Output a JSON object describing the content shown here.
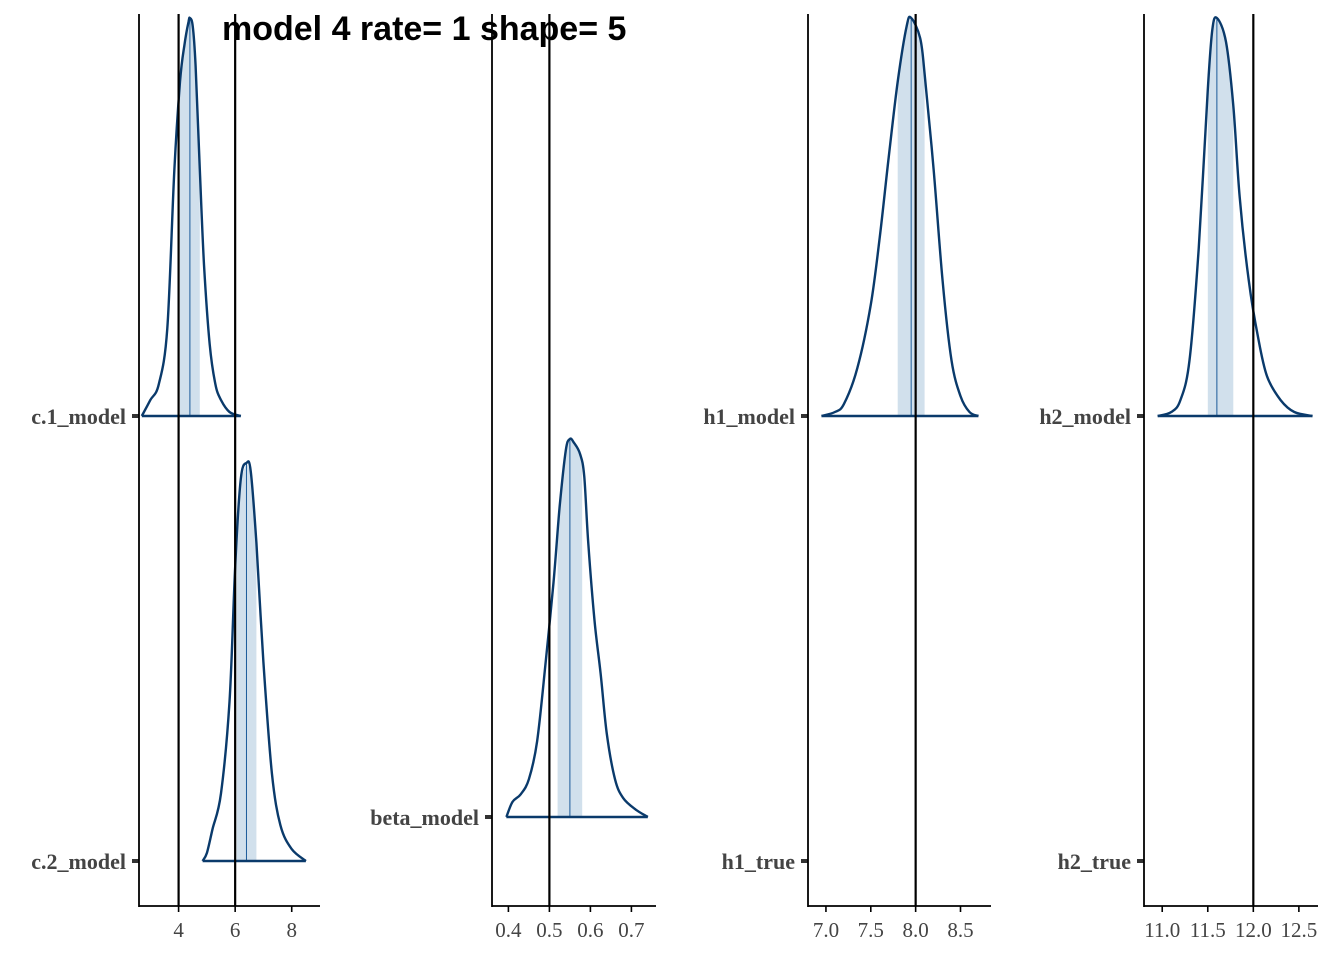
{
  "title": "model 4 rate= 1 shape= 5",
  "colors": {
    "density_line": "#0a3a6b",
    "interval_fill": "#d1e0ec",
    "median_line": "#1a5a9a",
    "vline": "#000000",
    "axis": "#000000"
  },
  "chart_data": [
    {
      "type": "area",
      "chart": "posterior-density-ridges",
      "xlim": [
        2.6,
        9.0
      ],
      "xticks": [
        4,
        6,
        8
      ],
      "tick_labels": [
        "4",
        "6",
        "8"
      ],
      "vlines": [
        4,
        6
      ],
      "params": [
        {
          "label": "c.1_model",
          "median": 4.4,
          "interval": [
            4.05,
            4.75
          ],
          "support": [
            2.7,
            6.2
          ],
          "density": [
            [
              2.7,
              0.0
            ],
            [
              3.0,
              0.04
            ],
            [
              3.3,
              0.08
            ],
            [
              3.6,
              0.22
            ],
            [
              3.85,
              0.62
            ],
            [
              4.05,
              0.84
            ],
            [
              4.2,
              0.93
            ],
            [
              4.35,
              0.99
            ],
            [
              4.4,
              1.0
            ],
            [
              4.5,
              0.98
            ],
            [
              4.6,
              0.88
            ],
            [
              4.75,
              0.62
            ],
            [
              4.9,
              0.38
            ],
            [
              5.1,
              0.18
            ],
            [
              5.3,
              0.08
            ],
            [
              5.5,
              0.04
            ],
            [
              5.8,
              0.01
            ],
            [
              6.2,
              0.0
            ]
          ]
        },
        {
          "label": "c.2_model",
          "median": 6.4,
          "interval": [
            6.05,
            6.75
          ],
          "support": [
            4.85,
            8.5
          ],
          "density": [
            [
              4.85,
              0.0
            ],
            [
              5.0,
              0.02
            ],
            [
              5.2,
              0.08
            ],
            [
              5.5,
              0.17
            ],
            [
              5.8,
              0.4
            ],
            [
              6.0,
              0.74
            ],
            [
              6.2,
              0.96
            ],
            [
              6.4,
              1.0
            ],
            [
              6.55,
              0.98
            ],
            [
              6.75,
              0.8
            ],
            [
              7.0,
              0.5
            ],
            [
              7.3,
              0.22
            ],
            [
              7.6,
              0.09
            ],
            [
              8.0,
              0.03
            ],
            [
              8.5,
              0.0
            ]
          ]
        }
      ]
    },
    {
      "type": "area",
      "chart": "posterior-density-ridges",
      "xlim": [
        0.36,
        0.76
      ],
      "xticks": [
        0.4,
        0.5,
        0.6,
        0.7
      ],
      "tick_labels": [
        "0.4",
        "0.5",
        "0.6",
        "0.7"
      ],
      "vlines": [
        0.5
      ],
      "params": [
        {
          "label": "beta_model",
          "median": 0.55,
          "interval": [
            0.52,
            0.58
          ],
          "support": [
            0.395,
            0.74
          ],
          "density": [
            [
              0.395,
              0.0
            ],
            [
              0.41,
              0.04
            ],
            [
              0.43,
              0.06
            ],
            [
              0.45,
              0.1
            ],
            [
              0.47,
              0.2
            ],
            [
              0.49,
              0.4
            ],
            [
              0.51,
              0.62
            ],
            [
              0.525,
              0.82
            ],
            [
              0.54,
              0.97
            ],
            [
              0.55,
              1.0
            ],
            [
              0.56,
              0.99
            ],
            [
              0.575,
              0.96
            ],
            [
              0.585,
              0.9
            ],
            [
              0.595,
              0.72
            ],
            [
              0.61,
              0.52
            ],
            [
              0.625,
              0.38
            ],
            [
              0.64,
              0.22
            ],
            [
              0.66,
              0.1
            ],
            [
              0.68,
              0.05
            ],
            [
              0.71,
              0.02
            ],
            [
              0.74,
              0.0
            ]
          ]
        }
      ]
    },
    {
      "type": "area",
      "chart": "posterior-density-ridges",
      "xlim": [
        6.8,
        8.84
      ],
      "xticks": [
        7.0,
        7.5,
        8.0,
        8.5
      ],
      "tick_labels": [
        "7.0",
        "7.5",
        "8.0",
        "8.5"
      ],
      "vlines": [
        8.0
      ],
      "params": [
        {
          "label": "h1_model",
          "median": 7.95,
          "interval": [
            7.8,
            8.1
          ],
          "support": [
            6.95,
            8.7
          ],
          "density": [
            [
              6.95,
              0.0
            ],
            [
              7.1,
              0.01
            ],
            [
              7.2,
              0.03
            ],
            [
              7.35,
              0.12
            ],
            [
              7.5,
              0.28
            ],
            [
              7.6,
              0.45
            ],
            [
              7.7,
              0.65
            ],
            [
              7.8,
              0.84
            ],
            [
              7.9,
              0.98
            ],
            [
              7.95,
              1.0
            ],
            [
              8.05,
              0.95
            ],
            [
              8.1,
              0.86
            ],
            [
              8.2,
              0.62
            ],
            [
              8.3,
              0.34
            ],
            [
              8.4,
              0.14
            ],
            [
              8.5,
              0.05
            ],
            [
              8.6,
              0.01
            ],
            [
              8.7,
              0.0
            ]
          ]
        },
        {
          "label": "h1_true",
          "point": 8.0
        }
      ]
    },
    {
      "type": "area",
      "chart": "posterior-density-ridges",
      "xlim": [
        10.8,
        12.71
      ],
      "xticks": [
        11.0,
        11.5,
        12.0,
        12.5
      ],
      "tick_labels": [
        "11.0",
        "11.5",
        "12.0",
        "12.5"
      ],
      "vlines": [
        12.0
      ],
      "params": [
        {
          "label": "h2_model",
          "median": 11.6,
          "interval": [
            11.5,
            11.78
          ],
          "support": [
            10.95,
            12.65
          ],
          "density": [
            [
              10.95,
              0.0
            ],
            [
              11.1,
              0.01
            ],
            [
              11.2,
              0.04
            ],
            [
              11.3,
              0.14
            ],
            [
              11.4,
              0.42
            ],
            [
              11.5,
              0.82
            ],
            [
              11.55,
              0.97
            ],
            [
              11.6,
              1.0
            ],
            [
              11.7,
              0.94
            ],
            [
              11.78,
              0.78
            ],
            [
              11.85,
              0.55
            ],
            [
              11.95,
              0.34
            ],
            [
              12.05,
              0.2
            ],
            [
              12.15,
              0.1
            ],
            [
              12.3,
              0.04
            ],
            [
              12.45,
              0.01
            ],
            [
              12.65,
              0.0
            ]
          ]
        },
        {
          "label": "h2_true",
          "point": 12.0
        }
      ]
    }
  ]
}
